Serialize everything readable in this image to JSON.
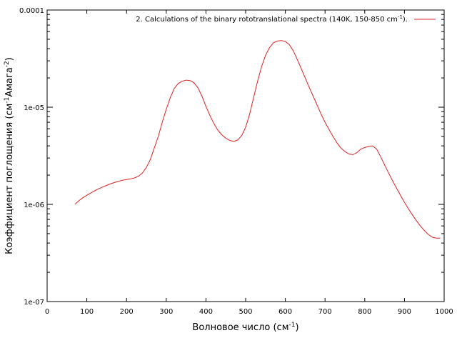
{
  "chart_data": {
    "type": "line",
    "title": "",
    "xlabel": {
      "base": "Волновое число (см",
      "sup": "-1",
      "tail": ")"
    },
    "ylabel": {
      "base": "Коэффициент поглощения (см",
      "sup1": "-1",
      "mid": "Амага",
      "sup2": "-2",
      "tail": ")"
    },
    "x_ticks": [
      "0",
      "100",
      "200",
      "300",
      "400",
      "500",
      "600",
      "700",
      "800",
      "900",
      "1000"
    ],
    "y_ticks": [
      "1e-07",
      "1e-06",
      "1e-05",
      "0.0001"
    ],
    "xlim": [
      0,
      1000
    ],
    "ylim": [
      1e-07,
      0.0001
    ],
    "y_scale": "log",
    "grid": false,
    "legend_position": "top-right",
    "series": [
      {
        "name": "2. Calculations of the binary rototranslational spectra  (140K, 150-850 cm",
        "name_sup": "-1",
        "name_tail": ").",
        "color": "#e02020",
        "x": [
          70,
          80,
          90,
          100,
          110,
          120,
          130,
          140,
          150,
          160,
          170,
          180,
          190,
          200,
          210,
          220,
          230,
          240,
          250,
          260,
          270,
          280,
          290,
          300,
          310,
          320,
          330,
          340,
          350,
          360,
          370,
          380,
          390,
          400,
          410,
          420,
          430,
          440,
          450,
          460,
          470,
          480,
          490,
          500,
          510,
          520,
          530,
          540,
          550,
          560,
          570,
          580,
          590,
          600,
          610,
          620,
          630,
          640,
          650,
          660,
          670,
          680,
          690,
          700,
          710,
          720,
          730,
          740,
          750,
          760,
          770,
          780,
          790,
          800,
          810,
          820,
          830,
          840,
          850,
          860,
          870,
          880,
          890,
          900,
          910,
          920,
          930,
          940,
          950,
          960,
          970,
          980,
          990
        ],
        "y": [
          1e-06,
          1.09e-06,
          1.17e-06,
          1.24e-06,
          1.31e-06,
          1.38e-06,
          1.45e-06,
          1.51e-06,
          1.57e-06,
          1.63e-06,
          1.68e-06,
          1.73e-06,
          1.77e-06,
          1.8e-06,
          1.83e-06,
          1.87e-06,
          1.95e-06,
          2.1e-06,
          2.4e-06,
          2.9e-06,
          3.8e-06,
          5e-06,
          7e-06,
          9.5e-06,
          1.25e-05,
          1.55e-05,
          1.75e-05,
          1.85e-05,
          1.9e-05,
          1.88e-05,
          1.78e-05,
          1.58e-05,
          1.3e-05,
          1.02e-05,
          8.2e-06,
          6.8e-06,
          5.8e-06,
          5.2e-06,
          4.8e-06,
          4.55e-06,
          4.45e-06,
          4.6e-06,
          5.1e-06,
          6.2e-06,
          8.5e-06,
          1.25e-05,
          1.85e-05,
          2.6e-05,
          3.4e-05,
          4.1e-05,
          4.6e-05,
          4.8e-05,
          4.85e-05,
          4.75e-05,
          4.4e-05,
          3.8e-05,
          3.1e-05,
          2.5e-05,
          2e-05,
          1.6e-05,
          1.3e-05,
          1.05e-05,
          8.5e-06,
          7e-06,
          5.9e-06,
          5e-06,
          4.3e-06,
          3.8e-06,
          3.5e-06,
          3.3e-06,
          3.25e-06,
          3.4e-06,
          3.7e-06,
          3.85e-06,
          3.95e-06,
          4e-06,
          3.7e-06,
          3.1e-06,
          2.55e-06,
          2.1e-06,
          1.75e-06,
          1.47e-06,
          1.24e-06,
          1.05e-06,
          9e-07,
          7.8e-07,
          6.8e-07,
          6e-07,
          5.4e-07,
          4.9e-07,
          4.6e-07,
          4.5e-07,
          4.5e-07
        ]
      }
    ]
  }
}
